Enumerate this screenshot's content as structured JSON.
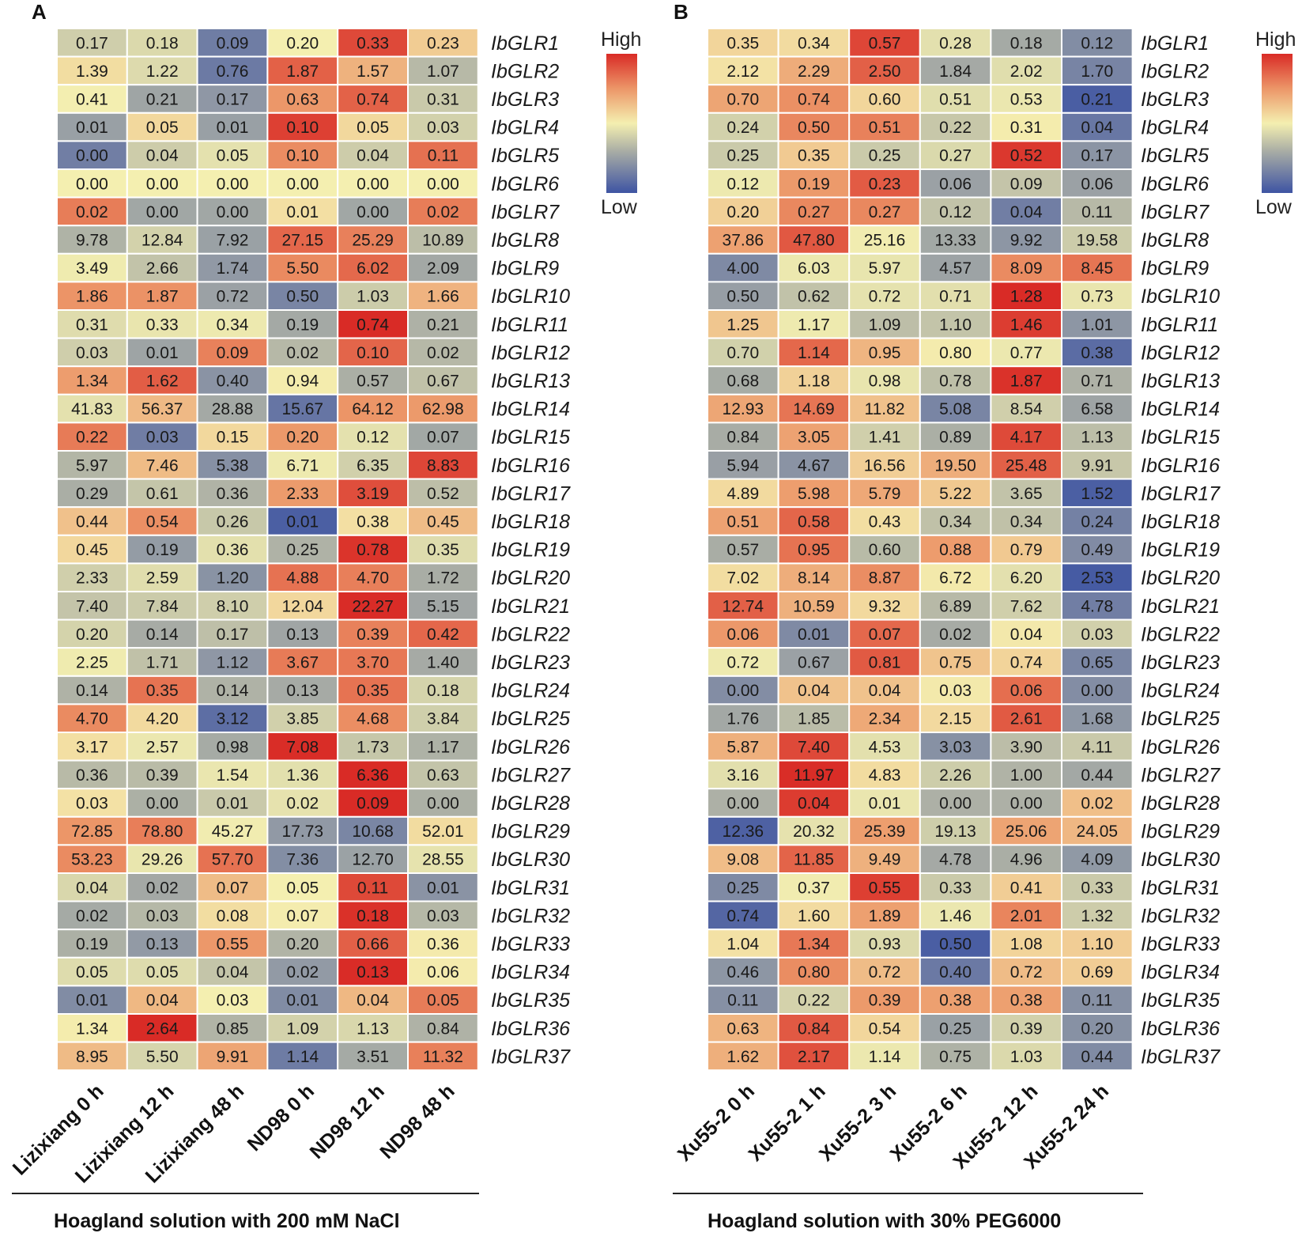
{
  "chart_data": [
    {
      "type": "heatmap",
      "panel": "A",
      "columns": [
        "Lizixiang 0 h",
        "Lizixiang 12 h",
        "Lizixiang 48 h",
        "ND98 0 h",
        "ND98 12 h",
        "ND98 48 h"
      ],
      "rows": [
        "IbGLR1",
        "IbGLR2",
        "IbGLR3",
        "IbGLR4",
        "IbGLR5",
        "IbGLR6",
        "IbGLR7",
        "IbGLR8",
        "IbGLR9",
        "IbGLR10",
        "IbGLR11",
        "IbGLR12",
        "IbGLR13",
        "IbGLR14",
        "IbGLR15",
        "IbGLR16",
        "IbGLR17",
        "IbGLR18",
        "IbGLR19",
        "IbGLR20",
        "IbGLR21",
        "IbGLR22",
        "IbGLR23",
        "IbGLR24",
        "IbGLR25",
        "IbGLR26",
        "IbGLR27",
        "IbGLR28",
        "IbGLR29",
        "IbGLR30",
        "IbGLR31",
        "IbGLR32",
        "IbGLR33",
        "IbGLR34",
        "IbGLR35",
        "IbGLR36",
        "IbGLR37"
      ],
      "values": [
        [
          "0.17",
          "0.18",
          "0.09",
          "0.20",
          "0.33",
          "0.23"
        ],
        [
          "1.39",
          "1.22",
          "0.76",
          "1.87",
          "1.57",
          "1.07"
        ],
        [
          "0.41",
          "0.21",
          "0.17",
          "0.63",
          "0.74",
          "0.31"
        ],
        [
          "0.01",
          "0.05",
          "0.01",
          "0.10",
          "0.05",
          "0.03"
        ],
        [
          "0.00",
          "0.04",
          "0.05",
          "0.10",
          "0.04",
          "0.11"
        ],
        [
          "0.00",
          "0.00",
          "0.00",
          "0.00",
          "0.00",
          "0.00"
        ],
        [
          "0.02",
          "0.00",
          "0.00",
          "0.01",
          "0.00",
          "0.02"
        ],
        [
          "9.78",
          "12.84",
          "7.92",
          "27.15",
          "25.29",
          "10.89"
        ],
        [
          "3.49",
          "2.66",
          "1.74",
          "5.50",
          "6.02",
          "2.09"
        ],
        [
          "1.86",
          "1.87",
          "0.72",
          "0.50",
          "1.03",
          "1.66"
        ],
        [
          "0.31",
          "0.33",
          "0.34",
          "0.19",
          "0.74",
          "0.21"
        ],
        [
          "0.03",
          "0.01",
          "0.09",
          "0.02",
          "0.10",
          "0.02"
        ],
        [
          "1.34",
          "1.62",
          "0.40",
          "0.94",
          "0.57",
          "0.67"
        ],
        [
          "41.83",
          "56.37",
          "28.88",
          "15.67",
          "64.12",
          "62.98"
        ],
        [
          "0.22",
          "0.03",
          "0.15",
          "0.20",
          "0.12",
          "0.07"
        ],
        [
          "5.97",
          "7.46",
          "5.38",
          "6.71",
          "6.35",
          "8.83"
        ],
        [
          "0.29",
          "0.61",
          "0.36",
          "2.33",
          "3.19",
          "0.52"
        ],
        [
          "0.44",
          "0.54",
          "0.26",
          "0.01",
          "0.38",
          "0.45"
        ],
        [
          "0.45",
          "0.19",
          "0.36",
          "0.25",
          "0.78",
          "0.35"
        ],
        [
          "2.33",
          "2.59",
          "1.20",
          "4.88",
          "4.70",
          "1.72"
        ],
        [
          "7.40",
          "7.84",
          "8.10",
          "12.04",
          "22.27",
          "5.15"
        ],
        [
          "0.20",
          "0.14",
          "0.17",
          "0.13",
          "0.39",
          "0.42"
        ],
        [
          "2.25",
          "1.71",
          "1.12",
          "3.67",
          "3.70",
          "1.40"
        ],
        [
          "0.14",
          "0.35",
          "0.14",
          "0.13",
          "0.35",
          "0.18"
        ],
        [
          "4.70",
          "4.20",
          "3.12",
          "3.85",
          "4.68",
          "3.84"
        ],
        [
          "3.17",
          "2.57",
          "0.98",
          "7.08",
          "1.73",
          "1.17"
        ],
        [
          "0.36",
          "0.39",
          "1.54",
          "1.36",
          "6.36",
          "0.63"
        ],
        [
          "0.03",
          "0.00",
          "0.01",
          "0.02",
          "0.09",
          "0.00"
        ],
        [
          "72.85",
          "78.80",
          "45.27",
          "17.73",
          "10.68",
          "52.01"
        ],
        [
          "53.23",
          "29.26",
          "57.70",
          "7.36",
          "12.70",
          "28.55"
        ],
        [
          "0.04",
          "0.02",
          "0.07",
          "0.05",
          "0.11",
          "0.01"
        ],
        [
          "0.02",
          "0.03",
          "0.08",
          "0.07",
          "0.18",
          "0.03"
        ],
        [
          "0.19",
          "0.13",
          "0.55",
          "0.20",
          "0.66",
          "0.36"
        ],
        [
          "0.05",
          "0.05",
          "0.04",
          "0.02",
          "0.13",
          "0.06"
        ],
        [
          "0.01",
          "0.04",
          "0.03",
          "0.01",
          "0.04",
          "0.05"
        ],
        [
          "1.34",
          "2.64",
          "0.85",
          "1.09",
          "1.13",
          "0.84"
        ],
        [
          "8.95",
          "5.50",
          "9.91",
          "1.14",
          "3.51",
          "11.32"
        ]
      ],
      "treatment_label": "Hoagland solution with 200 mM NaCl",
      "legend": {
        "high": "High",
        "low": "Low"
      },
      "colors": {
        "low": "#3e54a3",
        "mid": "#f4efb0",
        "high": "#d92b26",
        "midgray": "#a9ada5"
      }
    },
    {
      "type": "heatmap",
      "panel": "B",
      "columns": [
        "Xu55-2 0 h",
        "Xu55-2 1 h",
        "Xu55-2 3 h",
        "Xu55-2 6 h",
        "Xu55-2 12 h",
        "Xu55-2 24 h"
      ],
      "rows": [
        "IbGLR1",
        "IbGLR2",
        "IbGLR3",
        "IbGLR4",
        "IbGLR5",
        "IbGLR6",
        "IbGLR7",
        "IbGLR8",
        "IbGLR9",
        "IbGLR10",
        "IbGLR11",
        "IbGLR12",
        "IbGLR13",
        "IbGLR14",
        "IbGLR15",
        "IbGLR16",
        "IbGLR17",
        "IbGLR18",
        "IbGLR19",
        "IbGLR20",
        "IbGLR21",
        "IbGLR22",
        "IbGLR23",
        "IbGLR24",
        "IbGLR25",
        "IbGLR26",
        "IbGLR27",
        "IbGLR28",
        "IbGLR29",
        "IbGLR30",
        "IbGLR31",
        "IbGLR32",
        "IbGLR33",
        "IbGLR34",
        "IbGLR35",
        "IbGLR36",
        "IbGLR37"
      ],
      "values": [
        [
          "0.35",
          "0.34",
          "0.57",
          "0.28",
          "0.18",
          "0.12"
        ],
        [
          "2.12",
          "2.29",
          "2.50",
          "1.84",
          "2.02",
          "1.70"
        ],
        [
          "0.70",
          "0.74",
          "0.60",
          "0.51",
          "0.53",
          "0.21"
        ],
        [
          "0.24",
          "0.50",
          "0.51",
          "0.22",
          "0.31",
          "0.04"
        ],
        [
          "0.25",
          "0.35",
          "0.25",
          "0.27",
          "0.52",
          "0.17"
        ],
        [
          "0.12",
          "0.19",
          "0.23",
          "0.06",
          "0.09",
          "0.06"
        ],
        [
          "0.20",
          "0.27",
          "0.27",
          "0.12",
          "0.04",
          "0.11"
        ],
        [
          "37.86",
          "47.80",
          "25.16",
          "13.33",
          "9.92",
          "19.58"
        ],
        [
          "4.00",
          "6.03",
          "5.97",
          "4.57",
          "8.09",
          "8.45"
        ],
        [
          "0.50",
          "0.62",
          "0.72",
          "0.71",
          "1.28",
          "0.73"
        ],
        [
          "1.25",
          "1.17",
          "1.09",
          "1.10",
          "1.46",
          "1.01"
        ],
        [
          "0.70",
          "1.14",
          "0.95",
          "0.80",
          "0.77",
          "0.38"
        ],
        [
          "0.68",
          "1.18",
          "0.98",
          "0.78",
          "1.87",
          "0.71"
        ],
        [
          "12.93",
          "14.69",
          "11.82",
          "5.08",
          "8.54",
          "6.58"
        ],
        [
          "0.84",
          "3.05",
          "1.41",
          "0.89",
          "4.17",
          "1.13"
        ],
        [
          "5.94",
          "4.67",
          "16.56",
          "19.50",
          "25.48",
          "9.91"
        ],
        [
          "4.89",
          "5.98",
          "5.79",
          "5.22",
          "3.65",
          "1.52"
        ],
        [
          "0.51",
          "0.58",
          "0.43",
          "0.34",
          "0.34",
          "0.24"
        ],
        [
          "0.57",
          "0.95",
          "0.60",
          "0.88",
          "0.79",
          "0.49"
        ],
        [
          "7.02",
          "8.14",
          "8.87",
          "6.72",
          "6.20",
          "2.53"
        ],
        [
          "12.74",
          "10.59",
          "9.32",
          "6.89",
          "7.62",
          "4.78"
        ],
        [
          "0.06",
          "0.01",
          "0.07",
          "0.02",
          "0.04",
          "0.03"
        ],
        [
          "0.72",
          "0.67",
          "0.81",
          "0.75",
          "0.74",
          "0.65"
        ],
        [
          "0.00",
          "0.04",
          "0.04",
          "0.03",
          "0.06",
          "0.00"
        ],
        [
          "1.76",
          "1.85",
          "2.34",
          "2.15",
          "2.61",
          "1.68"
        ],
        [
          "5.87",
          "7.40",
          "4.53",
          "3.03",
          "3.90",
          "4.11"
        ],
        [
          "3.16",
          "11.97",
          "4.83",
          "2.26",
          "1.00",
          "0.44"
        ],
        [
          "0.00",
          "0.04",
          "0.01",
          "0.00",
          "0.00",
          "0.02"
        ],
        [
          "12.36",
          "20.32",
          "25.39",
          "19.13",
          "25.06",
          "24.05"
        ],
        [
          "9.08",
          "11.85",
          "9.49",
          "4.78",
          "4.96",
          "4.09"
        ],
        [
          "0.25",
          "0.37",
          "0.55",
          "0.33",
          "0.41",
          "0.33"
        ],
        [
          "0.74",
          "1.60",
          "1.89",
          "1.46",
          "2.01",
          "1.32"
        ],
        [
          "1.04",
          "1.34",
          "0.93",
          "0.50",
          "1.08",
          "1.10"
        ],
        [
          "0.46",
          "0.80",
          "0.72",
          "0.40",
          "0.72",
          "0.69"
        ],
        [
          "0.11",
          "0.22",
          "0.39",
          "0.38",
          "0.38",
          "0.11"
        ],
        [
          "0.63",
          "0.84",
          "0.54",
          "0.25",
          "0.39",
          "0.20"
        ],
        [
          "1.62",
          "2.17",
          "1.14",
          "0.75",
          "1.03",
          "0.44"
        ]
      ],
      "treatment_label": "Hoagland solution with 30% PEG6000",
      "legend": {
        "high": "High",
        "low": "Low"
      },
      "colors": {
        "low": "#3e54a3",
        "mid": "#f4efb0",
        "high": "#d92b26",
        "midgray": "#a9ada5"
      }
    }
  ]
}
